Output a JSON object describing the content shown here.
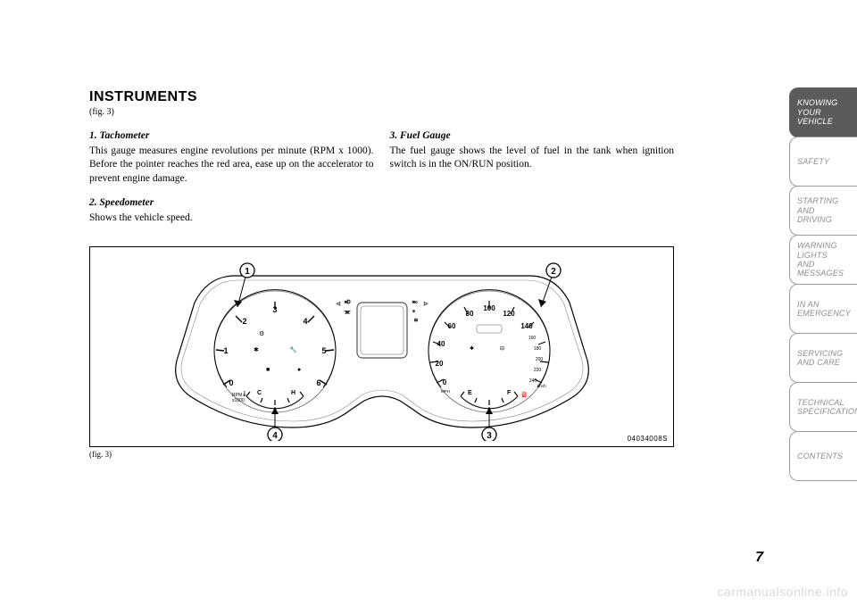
{
  "heading": "INSTRUMENTS",
  "figref_top": "(fig. 3)",
  "columns": {
    "left": [
      {
        "title": "1. Tachometer",
        "body": "This gauge measures engine revolutions per minute (RPM x 1000). Before the pointer reaches the red area, ease up on the accelerator to prevent engine damage."
      },
      {
        "title": "2. Speedometer",
        "body": "Shows the vehicle speed."
      }
    ],
    "right": [
      {
        "title": "3. Fuel Gauge",
        "body": "The fuel gauge shows the level of fuel in the tank when ignition switch is in the ON/RUN position."
      }
    ]
  },
  "figure": {
    "callouts": [
      "1",
      "2",
      "3",
      "4"
    ],
    "tach": {
      "ticks": [
        "0",
        "1",
        "2",
        "3",
        "4",
        "5",
        "6"
      ],
      "unit": "RPM\nx1000",
      "temp": {
        "left": "C",
        "right": "H"
      }
    },
    "speedo": {
      "outer": [
        "0",
        "20",
        "40",
        "60",
        "80",
        "100",
        "120",
        "140"
      ],
      "inner": [
        "0",
        "20",
        "40",
        "60",
        "80",
        "100",
        "120",
        "140",
        "160",
        "180",
        "200",
        "220",
        "240"
      ],
      "unit_outer": "MPH",
      "unit_inner": "km/h",
      "fuel": {
        "left": "E",
        "right": "F"
      }
    },
    "image_id": "04034008S",
    "caption": "(fig. 3)"
  },
  "tabs": [
    {
      "label": "KNOWING\nYOUR\nVEHICLE",
      "active": true
    },
    {
      "label": "SAFETY",
      "active": false
    },
    {
      "label": "STARTING\nAND\nDRIVING",
      "active": false
    },
    {
      "label": "WARNING\nLIGHTS\nAND\nMESSAGES",
      "active": false
    },
    {
      "label": "IN AN\nEMERGENCY",
      "active": false
    },
    {
      "label": "SERVICING\nAND CARE",
      "active": false
    },
    {
      "label": "TECHNICAL\nSPECIFICATIONS",
      "active": false
    },
    {
      "label": "CONTENTS",
      "active": false
    }
  ],
  "page_number": "7",
  "watermark": "carmanualsonline.info",
  "colors": {
    "tab_active_bg": "#5b5b5b",
    "tab_inactive_text": "#8d8d8d",
    "watermark": "#d9d9d9"
  }
}
